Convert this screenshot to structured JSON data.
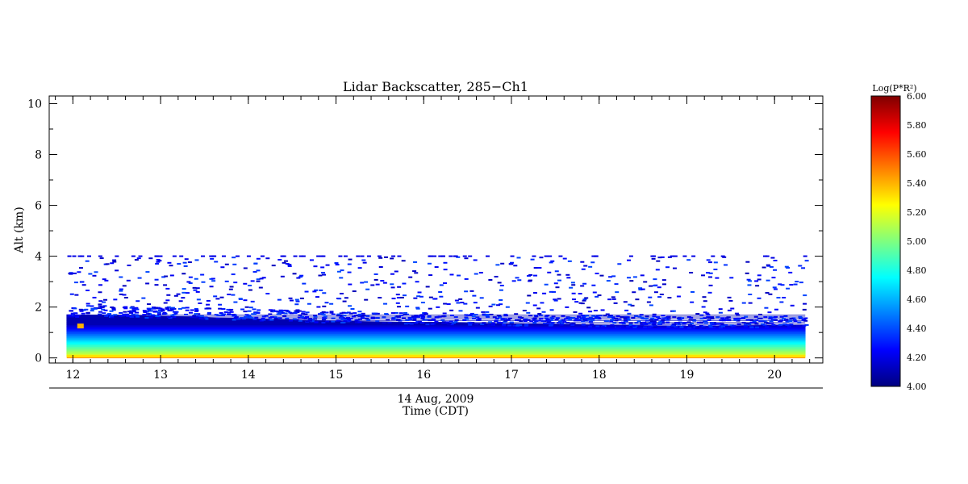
{
  "chart_data": {
    "type": "heatmap",
    "title": "Lidar Backscatter, 285−Ch1",
    "ylabel": "Alt (km)",
    "xlabel": "Time (CDT)",
    "date_label": "14 Aug, 2009",
    "xlim": [
      11.73,
      20.55
    ],
    "ylim": [
      -0.2,
      10.3
    ],
    "x_ticks": [
      12,
      13,
      14,
      15,
      16,
      17,
      18,
      19,
      20
    ],
    "y_ticks": [
      0,
      2,
      4,
      6,
      8,
      10
    ],
    "data_time_range": [
      11.93,
      20.35
    ],
    "boundary_layer_top_km": [
      {
        "time": 11.93,
        "alt": 1.7
      },
      {
        "time": 13.0,
        "alt": 1.65
      },
      {
        "time": 14.0,
        "alt": 1.55
      },
      {
        "time": 15.0,
        "alt": 1.45
      },
      {
        "time": 16.0,
        "alt": 1.4
      },
      {
        "time": 17.0,
        "alt": 1.35
      },
      {
        "time": 18.0,
        "alt": 1.3
      },
      {
        "time": 19.0,
        "alt": 1.25
      },
      {
        "time": 20.35,
        "alt": 1.3
      }
    ],
    "surface_value": 5.3,
    "colorbar": {
      "label": "Log(P*R²)",
      "range": [
        4.0,
        6.0
      ],
      "ticks": [
        "6.00",
        "5.80",
        "5.60",
        "5.40",
        "5.20",
        "5.00",
        "4.80",
        "4.60",
        "4.40",
        "4.20",
        "4.00"
      ],
      "colormap": [
        "#00007f",
        "#0000ff",
        "#007fff",
        "#00ffff",
        "#7fff7f",
        "#ffff00",
        "#ff7f00",
        "#ff0000",
        "#7f0000"
      ]
    }
  }
}
